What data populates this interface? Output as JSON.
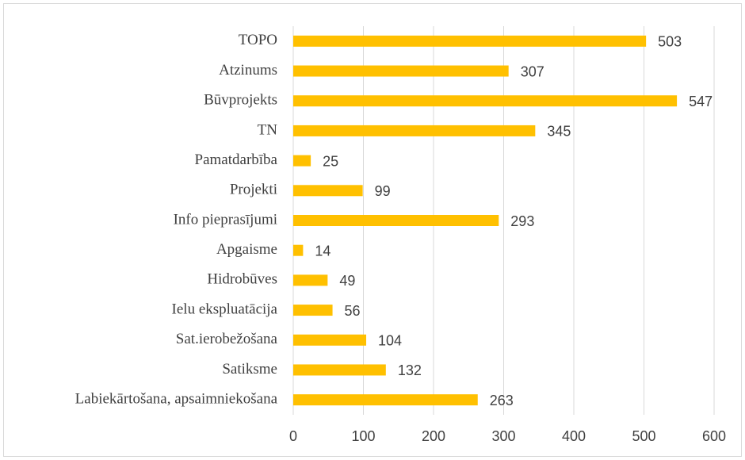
{
  "chart_data": {
    "type": "bar",
    "orientation": "horizontal",
    "categories": [
      "TOPO",
      "Atzinums",
      "Būvprojekts",
      "TN",
      "Pamatdarbība",
      "Projekti",
      "Info pieprasījumi",
      "Apgaisme",
      "Hidrobūves",
      "Ielu ekspluatācija",
      "Sat.ierobežošana",
      "Satiksme",
      "Labiekārtošana, apsaimniekošana"
    ],
    "values": [
      503,
      307,
      547,
      345,
      25,
      99,
      293,
      14,
      49,
      56,
      104,
      132,
      263
    ],
    "color": "#ffc000",
    "xlim": [
      0,
      600
    ],
    "xticks": [
      0,
      100,
      200,
      300,
      400,
      500,
      600
    ],
    "grid": true
  }
}
